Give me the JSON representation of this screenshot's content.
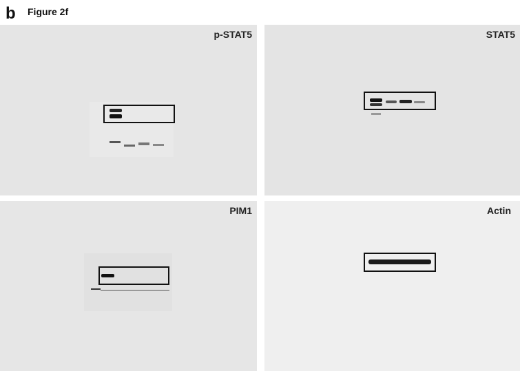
{
  "header": {
    "panel_letter": "b",
    "title": "Figure 2f"
  },
  "panels": [
    {
      "label": "p-STAT5"
    },
    {
      "label": "STAT5"
    },
    {
      "label": "PIM1"
    },
    {
      "label": "Actin"
    }
  ]
}
